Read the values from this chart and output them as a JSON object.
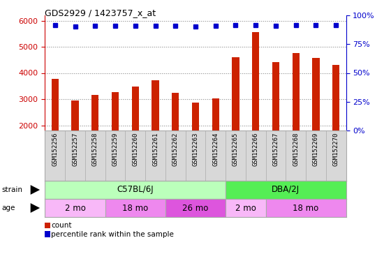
{
  "title": "GDS2929 / 1423757_x_at",
  "samples": [
    "GSM152256",
    "GSM152257",
    "GSM152258",
    "GSM152259",
    "GSM152260",
    "GSM152261",
    "GSM152262",
    "GSM152263",
    "GSM152264",
    "GSM152265",
    "GSM152266",
    "GSM152267",
    "GSM152268",
    "GSM152269",
    "GSM152270"
  ],
  "counts": [
    3780,
    2960,
    3160,
    3260,
    3470,
    3720,
    3230,
    2870,
    3020,
    4600,
    5570,
    4420,
    4750,
    4570,
    4300
  ],
  "percentile_left_values": [
    5820,
    5780,
    5810,
    5790,
    5800,
    5790,
    5790,
    5770,
    5790,
    5820,
    5840,
    5800,
    5820,
    5820,
    5820
  ],
  "bar_color": "#cc2200",
  "dot_color": "#0000cc",
  "ylim_left": [
    1800,
    6200
  ],
  "ylim_right": [
    0,
    100
  ],
  "yticks_left": [
    2000,
    3000,
    4000,
    5000,
    6000
  ],
  "yticks_right": [
    0,
    25,
    50,
    75,
    100
  ],
  "ytick_right_labels": [
    "0%",
    "25%",
    "50%",
    "75%",
    "100%"
  ],
  "strain_groups": [
    {
      "label": "C57BL/6J",
      "start": 0,
      "end": 8,
      "color": "#bbffbb"
    },
    {
      "label": "DBA/2J",
      "start": 9,
      "end": 14,
      "color": "#55ee55"
    }
  ],
  "age_groups": [
    {
      "label": "2 mo",
      "start": 0,
      "end": 2,
      "color": "#f8b8f8"
    },
    {
      "label": "18 mo",
      "start": 3,
      "end": 5,
      "color": "#ee88ee"
    },
    {
      "label": "26 mo",
      "start": 6,
      "end": 8,
      "color": "#dd55dd"
    },
    {
      "label": "2 mo",
      "start": 9,
      "end": 10,
      "color": "#f8b8f8"
    },
    {
      "label": "18 mo",
      "start": 11,
      "end": 14,
      "color": "#ee88ee"
    }
  ],
  "grid_color": "#888888",
  "bg_color": "#ffffff",
  "tick_area_bg": "#d8d8d8",
  "left_axis_color": "#cc0000",
  "right_axis_color": "#0000cc",
  "legend_items": [
    {
      "label": "count",
      "color": "#cc2200"
    },
    {
      "label": "percentile rank within the sample",
      "color": "#0000cc"
    }
  ]
}
